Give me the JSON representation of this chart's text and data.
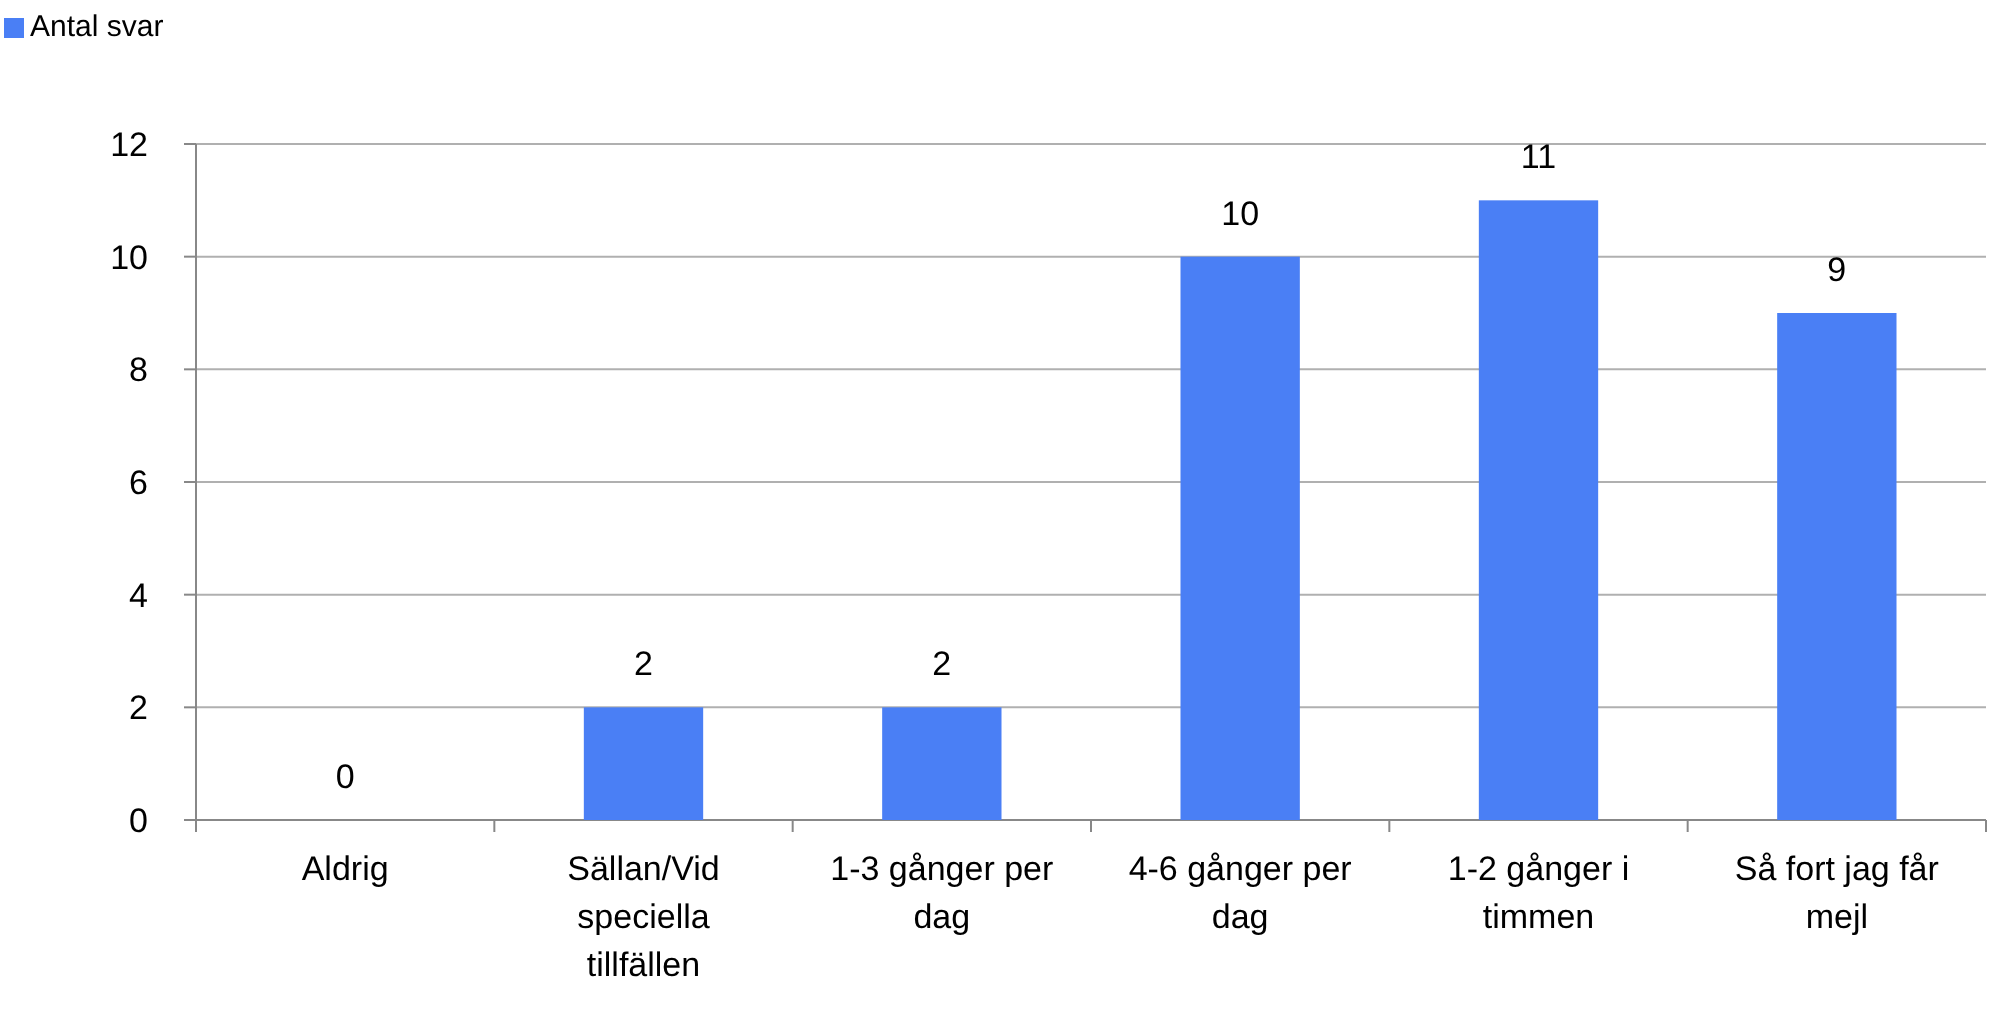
{
  "chart_data": {
    "type": "bar",
    "categories": [
      "Aldrig",
      "Sällan/Vid speciella tillfällen",
      "1-3 gånger per dag",
      "4-6 gånger per dag",
      "1-2 gånger i timmen",
      "Så fort jag får mejl"
    ],
    "series": [
      {
        "name": "Antal svar",
        "color": "#4a7ff5",
        "values": [
          0,
          2,
          2,
          10,
          11,
          9
        ]
      }
    ],
    "ylim": [
      0,
      12
    ],
    "yticks": [
      0,
      2,
      4,
      6,
      8,
      10,
      12
    ],
    "grid": "y",
    "legend": "top left",
    "data_labels": true
  }
}
